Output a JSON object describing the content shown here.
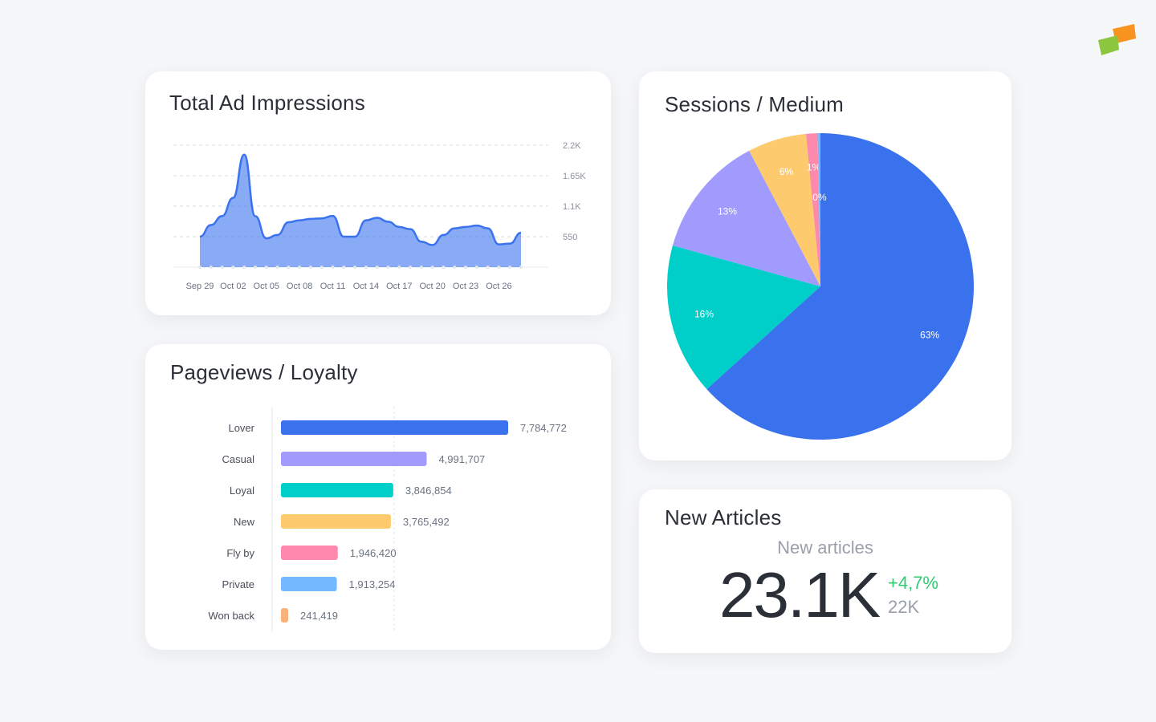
{
  "logo": {
    "colors": [
      "#f7931e",
      "#8cc63f"
    ]
  },
  "impressions": {
    "title": "Total Ad Impressions"
  },
  "sessions": {
    "title": "Sessions / Medium"
  },
  "pageviews": {
    "title": "Pageviews / Loyalty"
  },
  "articles": {
    "title": "New Articles",
    "label": "New articles",
    "value": "23.1K",
    "change": "+4,7%",
    "previous": "22K",
    "change_color": "#2ecc71"
  },
  "chart_data": [
    {
      "type": "area",
      "title": "Total Ad Impressions",
      "x": [
        "Sep 29",
        "Sep 30",
        "Oct 01",
        "Oct 02",
        "Oct 03",
        "Oct 04",
        "Oct 05",
        "Oct 06",
        "Oct 07",
        "Oct 08",
        "Oct 09",
        "Oct 10",
        "Oct 11",
        "Oct 12",
        "Oct 13",
        "Oct 14",
        "Oct 15",
        "Oct 16",
        "Oct 17",
        "Oct 18",
        "Oct 19",
        "Oct 20",
        "Oct 21",
        "Oct 22",
        "Oct 23",
        "Oct 24",
        "Oct 25",
        "Oct 26",
        "Oct 27",
        "Oct 28"
      ],
      "values": [
        550,
        760,
        920,
        1250,
        2030,
        920,
        520,
        580,
        810,
        845,
        870,
        880,
        925,
        550,
        550,
        845,
        890,
        820,
        725,
        685,
        460,
        400,
        580,
        700,
        725,
        750,
        700,
        410,
        425,
        620
      ],
      "xticks": [
        "Sep 29",
        "Oct 02",
        "Oct 05",
        "Oct 08",
        "Oct 11",
        "Oct 14",
        "Oct 17",
        "Oct 20",
        "Oct 23",
        "Oct 26"
      ],
      "yticks": [
        "550",
        "1.1K",
        "1.65K",
        "2.2K"
      ],
      "ylim": [
        0,
        2200
      ],
      "grid": true,
      "color": "#3b73ee"
    },
    {
      "type": "pie",
      "title": "Sessions / Medium",
      "slices": [
        {
          "label": "63%",
          "value": 63.3,
          "color": "#3a71ec"
        },
        {
          "label": "16%",
          "value": 16,
          "color": "#00cec9"
        },
        {
          "label": "13%",
          "value": 13,
          "color": "#a29bfe"
        },
        {
          "label": "6%",
          "value": 6.2,
          "color": "#fdcb6e"
        },
        {
          "label": "1%",
          "value": 1.2,
          "color": "#fd8aad"
        },
        {
          "label": "0%",
          "value": 0.3,
          "color": "#74b9ff"
        }
      ]
    },
    {
      "type": "bar",
      "orientation": "horizontal",
      "title": "Pageviews / Loyalty",
      "categories": [
        "Lover",
        "Casual",
        "Loyal",
        "New",
        "Fly by",
        "Private",
        "Won back"
      ],
      "values": [
        7784772,
        4991707,
        3846854,
        3765492,
        1946420,
        1913254,
        241419
      ],
      "labels": [
        "7,784,772",
        "4,991,707",
        "3,846,854",
        "3,765,492",
        "1,946,420",
        "1,913,254",
        "241,419"
      ],
      "colors": [
        "#3a71ec",
        "#a29bfe",
        "#00cec9",
        "#fdcb6e",
        "#fd8aad",
        "#74b9ff",
        "#fab27b"
      ]
    }
  ]
}
